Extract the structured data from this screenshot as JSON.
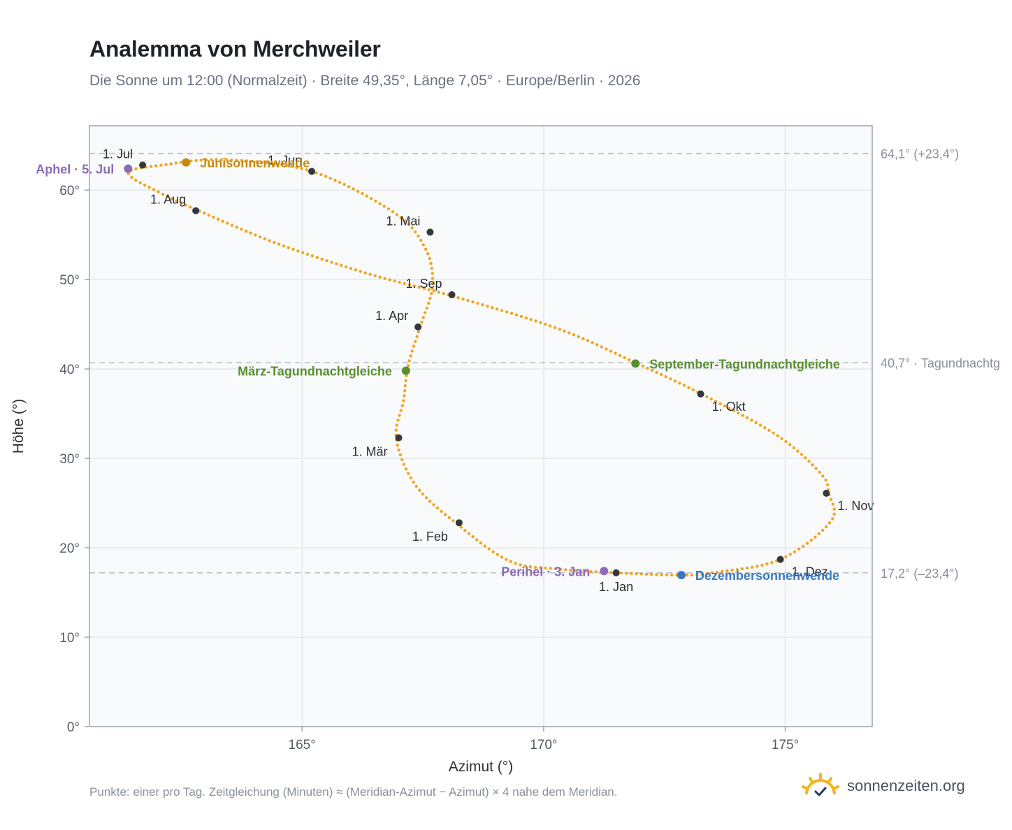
{
  "chart_data": {
    "type": "scatter",
    "title": "Analemma von Merchweiler",
    "subtitle": "Die Sonne um 12:00 (Normalzeit) · Breite 49,35°, Länge 7,05° · Europe/Berlin · 2026",
    "xlabel": "Azimut (°)",
    "ylabel": "Höhe (°)",
    "xlim": [
      160.6,
      176.8
    ],
    "ylim": [
      0,
      67.2
    ],
    "xticks": [
      "165°",
      "170°",
      "175°"
    ],
    "xtick_values": [
      165,
      170,
      175
    ],
    "yticks": [
      "0°",
      "10°",
      "20°",
      "30°",
      "40°",
      "50°",
      "60°"
    ],
    "ytick_values": [
      0,
      10,
      20,
      30,
      40,
      50,
      60
    ],
    "grid": true,
    "series": [],
    "points": [
      [
        171.5,
        17.2
      ],
      [
        170.35,
        17.6
      ],
      [
        169.3,
        18.5
      ],
      [
        168.2,
        22.7
      ],
      [
        167.35,
        27.0
      ],
      [
        166.95,
        32.2
      ],
      [
        167.1,
        36.5
      ],
      [
        167.2,
        40.5
      ],
      [
        167.45,
        44.8
      ],
      [
        167.7,
        49.3
      ],
      [
        167.55,
        53.5
      ],
      [
        166.9,
        57.5
      ],
      [
        165.2,
        62.1
      ],
      [
        163.4,
        63.4
      ],
      [
        162.1,
        62.8
      ],
      [
        161.4,
        61.9
      ],
      [
        162.1,
        59.6
      ],
      [
        162.9,
        57.6
      ],
      [
        164.5,
        54.0
      ],
      [
        166.4,
        50.6
      ],
      [
        168.15,
        48.1
      ],
      [
        170.3,
        44.5
      ],
      [
        171.9,
        40.7
      ],
      [
        173.3,
        37.1
      ],
      [
        174.85,
        32.5
      ],
      [
        175.75,
        28.2
      ],
      [
        175.9,
        26.1
      ],
      [
        175.95,
        23.0
      ],
      [
        174.9,
        18.7
      ],
      [
        173.5,
        17.2
      ],
      [
        172.8,
        16.95
      ]
    ],
    "months": [
      {
        "label": "1. Jan",
        "x": 171.5,
        "y": 17.2,
        "pos": "below"
      },
      {
        "label": "1. Feb",
        "x": 168.25,
        "y": 22.8,
        "pos": "below-left"
      },
      {
        "label": "1. Mär",
        "x": 167.0,
        "y": 32.3,
        "pos": "below-left"
      },
      {
        "label": "1. Apr",
        "x": 167.4,
        "y": 44.7,
        "pos": "above-left"
      },
      {
        "label": "1. Mai",
        "x": 167.65,
        "y": 55.3,
        "pos": "above-left"
      },
      {
        "label": "1. Jun",
        "x": 165.2,
        "y": 62.1,
        "pos": "above-left"
      },
      {
        "label": "1. Jul",
        "x": 161.7,
        "y": 62.8,
        "pos": "above-left"
      },
      {
        "label": "1. Aug",
        "x": 162.8,
        "y": 57.7,
        "pos": "above-left"
      },
      {
        "label": "1. Sep",
        "x": 168.1,
        "y": 48.3,
        "pos": "above-left"
      },
      {
        "label": "1. Okt",
        "x": 173.25,
        "y": 37.2,
        "pos": "below-right"
      },
      {
        "label": "1. Nov",
        "x": 175.85,
        "y": 26.1,
        "pos": "right"
      },
      {
        "label": "1. Dez",
        "x": 174.9,
        "y": 18.7,
        "pos": "right"
      }
    ],
    "events": [
      {
        "label": "Junisonnenwende",
        "x": 162.6,
        "y": 63.1,
        "color": "#c98a0a",
        "pos": "right"
      },
      {
        "label": "Aphel · 5. Jul",
        "x": 161.4,
        "y": 62.4,
        "color": "#8e6bb8",
        "pos": "left"
      },
      {
        "label": "März-Tagundnachtgleiche",
        "x": 167.15,
        "y": 39.8,
        "color": "#5a8f2e",
        "pos": "left"
      },
      {
        "label": "September-Tagundnachtgleiche",
        "x": 171.9,
        "y": 40.6,
        "color": "#5a8f2e",
        "pos": "right"
      },
      {
        "label": "Perihel · 3. Jan",
        "x": 171.25,
        "y": 17.4,
        "color": "#8e6bb8",
        "pos": "left"
      },
      {
        "label": "Dezembersonnenwende",
        "x": 172.85,
        "y": 16.95,
        "color": "#3a78c4",
        "pos": "right"
      }
    ],
    "reference_lines": [
      {
        "y": 64.1,
        "label": "64,1° (+23,4°)"
      },
      {
        "y": 40.7,
        "label": "40,7° · Tagundnachtg"
      },
      {
        "y": 17.2,
        "label": "17,2° (–23,4°)"
      }
    ],
    "colors": {
      "curve": "#f2a51e",
      "month_marker": "#33373d",
      "grid": "#e3e8ee",
      "plot_bg": "#f8fafc",
      "frame": "#9aa5b4",
      "reference": "#b6bdc6"
    }
  },
  "footer": {
    "note": "Punkte: einer pro Tag. Zeitgleichung (Minuten) ≈ (Meridian-Azimut − Azimut) × 4 nahe dem Meridian.",
    "brand": "sonnenzeiten.org",
    "brand_icon": "sun-check-icon"
  }
}
